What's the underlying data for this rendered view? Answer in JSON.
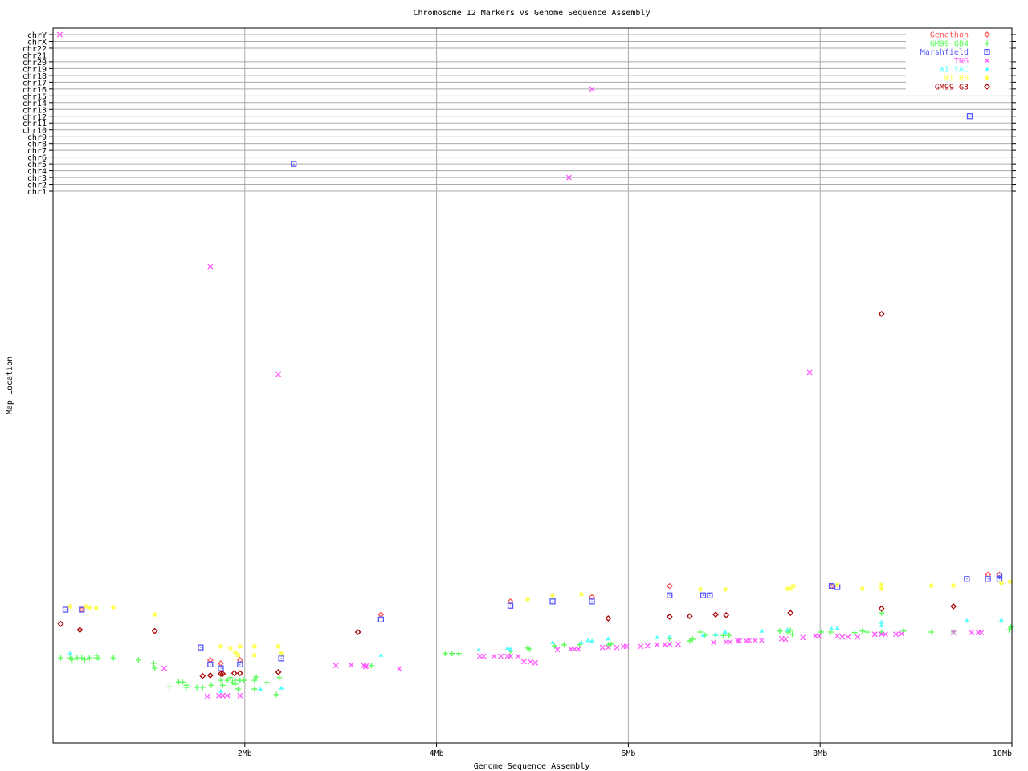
{
  "chart_data": {
    "type": "scatter",
    "title": "Chromosome 12 Markers vs Genome Sequence Assembly",
    "xlabel": "Genome Sequence Assembly",
    "ylabel": "Map Location",
    "xlim": [
      0,
      10
    ],
    "x_unit": "Mb",
    "x_ticks": [
      {
        "value": 2,
        "label": "2Mb"
      },
      {
        "value": 4,
        "label": "4Mb"
      },
      {
        "value": 6,
        "label": "6Mb"
      },
      {
        "value": 8,
        "label": "8Mb"
      },
      {
        "value": 10,
        "label": "10Mb"
      }
    ],
    "chromosome_labels": [
      "chrY",
      "chrX",
      "chr22",
      "chr21",
      "chr20",
      "chr19",
      "chr18",
      "chr17",
      "chr16",
      "chr15",
      "chr14",
      "chr13",
      "chr12",
      "chr11",
      "chr10",
      "chr9",
      "chr8",
      "chr7",
      "chr6",
      "chr5",
      "chr4",
      "chr3",
      "chr2",
      "chr1"
    ],
    "chr12_map_range": [
      0,
      100
    ],
    "grid": true,
    "legend_placement": "top-right",
    "series": [
      {
        "name": "Genethon",
        "marker": "diamond",
        "color": "#ff5555",
        "points": [
          [
            0.3,
            24.3
          ],
          [
            1.64,
            15.1
          ],
          [
            1.75,
            14.5
          ],
          [
            1.95,
            15.1
          ],
          [
            3.42,
            23.4
          ],
          [
            4.77,
            25.8
          ],
          [
            5.62,
            26.6
          ],
          [
            6.43,
            28.6
          ],
          [
            8.12,
            28.6
          ],
          [
            9.75,
            30.7
          ],
          [
            9.87,
            30.7
          ]
        ]
      },
      {
        "name": "GM99 GB4",
        "marker": "plus",
        "color": "#55ff55",
        "points": [
          [
            0.08,
            15.5
          ],
          [
            0.18,
            15.5
          ],
          [
            0.2,
            15.2
          ],
          [
            0.25,
            15.5
          ],
          [
            0.3,
            15.5
          ],
          [
            0.33,
            15.2
          ],
          [
            0.38,
            15.5
          ],
          [
            0.45,
            15.5
          ],
          [
            0.45,
            16.0
          ],
          [
            0.47,
            15.5
          ],
          [
            0.63,
            15.5
          ],
          [
            0.89,
            15.1
          ],
          [
            1.05,
            14.5
          ],
          [
            1.06,
            13.6
          ],
          [
            1.21,
            10.2
          ],
          [
            1.31,
            11.1
          ],
          [
            1.35,
            11.1
          ],
          [
            1.39,
            10.5
          ],
          [
            1.39,
            10.1
          ],
          [
            1.5,
            10.1
          ],
          [
            1.56,
            10.1
          ],
          [
            1.65,
            10.5
          ],
          [
            1.75,
            11.4
          ],
          [
            1.77,
            10.5
          ],
          [
            1.82,
            11.4
          ],
          [
            1.85,
            11.9
          ],
          [
            1.87,
            11.0
          ],
          [
            1.9,
            10.7
          ],
          [
            1.9,
            11.4
          ],
          [
            1.93,
            9.8
          ],
          [
            1.95,
            11.4
          ],
          [
            1.99,
            11.4
          ],
          [
            2.1,
            11.4
          ],
          [
            2.1,
            9.8
          ],
          [
            2.12,
            12.0
          ],
          [
            2.23,
            11.0
          ],
          [
            2.33,
            8.8
          ],
          [
            2.36,
            11.9
          ],
          [
            3.32,
            14.1
          ],
          [
            4.09,
            16.3
          ],
          [
            4.16,
            16.3
          ],
          [
            4.23,
            16.3
          ],
          [
            4.77,
            16.7
          ],
          [
            4.95,
            17.3
          ],
          [
            4.97,
            17.1
          ],
          [
            5.23,
            17.7
          ],
          [
            5.33,
            17.9
          ],
          [
            5.49,
            17.9
          ],
          [
            5.79,
            17.9
          ],
          [
            5.82,
            18.0
          ],
          [
            6.43,
            19.0
          ],
          [
            6.64,
            18.6
          ],
          [
            6.67,
            18.9
          ],
          [
            6.75,
            20.2
          ],
          [
            6.8,
            19.6
          ],
          [
            6.91,
            19.6
          ],
          [
            6.99,
            19.6
          ],
          [
            7.05,
            19.6
          ],
          [
            7.58,
            20.4
          ],
          [
            7.66,
            20.2
          ],
          [
            7.69,
            20.5
          ],
          [
            7.71,
            19.8
          ],
          [
            8.01,
            20.2
          ],
          [
            8.11,
            20.2
          ],
          [
            8.36,
            20.1
          ],
          [
            8.44,
            20.4
          ],
          [
            8.49,
            20.2
          ],
          [
            8.64,
            23.7
          ],
          [
            8.64,
            20.2
          ],
          [
            8.87,
            20.4
          ],
          [
            9.16,
            20.2
          ],
          [
            9.39,
            20.2
          ],
          [
            9.97,
            20.6
          ],
          [
            9.99,
            21.1
          ]
        ]
      },
      {
        "name": "Marshfield",
        "marker": "square",
        "color": "#5555ff",
        "points": [
          [
            0.13,
            24.3
          ],
          [
            0.3,
            24.3
          ],
          [
            1.54,
            17.4
          ],
          [
            1.64,
            14.3
          ],
          [
            1.75,
            13.6
          ],
          [
            1.95,
            14.3
          ],
          [
            2.38,
            15.4
          ],
          [
            3.42,
            22.5
          ],
          [
            4.77,
            25.0
          ],
          [
            5.21,
            25.8
          ],
          [
            5.62,
            25.8
          ],
          [
            6.43,
            26.9
          ],
          [
            6.78,
            26.9
          ],
          [
            6.85,
            26.9
          ],
          [
            8.12,
            28.6
          ],
          [
            8.18,
            28.4
          ],
          [
            9.53,
            29.9
          ],
          [
            9.75,
            29.9
          ],
          [
            9.87,
            29.9
          ],
          [
            9.87,
            30.5
          ],
          [
            2.51,
            "chr5"
          ],
          [
            9.56,
            "chr12"
          ]
        ]
      },
      {
        "name": "TNG",
        "marker": "x",
        "color": "#ff55ff",
        "points": [
          [
            1.16,
            13.6
          ],
          [
            1.61,
            8.5
          ],
          [
            1.73,
            8.6
          ],
          [
            1.77,
            8.6
          ],
          [
            1.82,
            8.6
          ],
          [
            1.95,
            8.6
          ],
          [
            2.95,
            14.1
          ],
          [
            3.11,
            14.2
          ],
          [
            3.24,
            14.1
          ],
          [
            3.26,
            13.9
          ],
          [
            3.27,
            14.1
          ],
          [
            3.61,
            13.5
          ],
          [
            4.45,
            15.8
          ],
          [
            4.49,
            15.8
          ],
          [
            4.6,
            15.8
          ],
          [
            4.67,
            15.8
          ],
          [
            4.74,
            15.8
          ],
          [
            4.77,
            15.8
          ],
          [
            4.85,
            15.8
          ],
          [
            4.91,
            14.8
          ],
          [
            4.98,
            14.8
          ],
          [
            5.03,
            14.6
          ],
          [
            5.26,
            17.0
          ],
          [
            5.4,
            17.1
          ],
          [
            5.44,
            17.1
          ],
          [
            5.48,
            17.1
          ],
          [
            5.73,
            17.4
          ],
          [
            5.79,
            17.4
          ],
          [
            5.88,
            17.4
          ],
          [
            5.95,
            17.6
          ],
          [
            5.98,
            17.6
          ],
          [
            6.13,
            17.6
          ],
          [
            6.2,
            17.7
          ],
          [
            6.3,
            17.9
          ],
          [
            6.38,
            17.9
          ],
          [
            6.43,
            18.0
          ],
          [
            6.52,
            18.0
          ],
          [
            6.89,
            18.3
          ],
          [
            7.02,
            18.4
          ],
          [
            7.06,
            18.4
          ],
          [
            7.14,
            18.6
          ],
          [
            7.16,
            18.6
          ],
          [
            7.23,
            18.6
          ],
          [
            7.26,
            18.7
          ],
          [
            7.32,
            18.7
          ],
          [
            7.39,
            18.7
          ],
          [
            7.6,
            19.0
          ],
          [
            7.64,
            18.9
          ],
          [
            7.82,
            19.2
          ],
          [
            7.95,
            19.5
          ],
          [
            7.99,
            19.5
          ],
          [
            8.18,
            19.5
          ],
          [
            8.23,
            19.3
          ],
          [
            8.29,
            19.3
          ],
          [
            8.39,
            19.3
          ],
          [
            8.57,
            19.8
          ],
          [
            8.64,
            19.8
          ],
          [
            8.68,
            19.8
          ],
          [
            8.79,
            19.8
          ],
          [
            8.85,
            19.9
          ],
          [
            9.39,
            20.1
          ],
          [
            9.58,
            20.1
          ],
          [
            9.65,
            20.1
          ],
          [
            9.68,
            20.1
          ],
          [
            1.64,
            86.8
          ],
          [
            2.35,
            67.2
          ],
          [
            7.89,
            67.5
          ],
          [
            0.07,
            "chrY"
          ],
          [
            5.62,
            "chr16"
          ],
          [
            5.38,
            "chr3"
          ]
        ]
      },
      {
        "name": "WI YAC",
        "marker": "triangle",
        "color": "#55ffff",
        "points": [
          [
            0.18,
            16.4
          ],
          [
            1.75,
            9.4
          ],
          [
            2.16,
            9.8
          ],
          [
            2.38,
            10.0
          ],
          [
            3.42,
            16.0
          ],
          [
            4.44,
            17.0
          ],
          [
            4.74,
            17.3
          ],
          [
            4.77,
            17.1
          ],
          [
            5.21,
            18.3
          ],
          [
            5.51,
            18.3
          ],
          [
            5.58,
            18.7
          ],
          [
            5.62,
            18.6
          ],
          [
            5.79,
            19.0
          ],
          [
            6.3,
            19.2
          ],
          [
            6.43,
            19.3
          ],
          [
            6.78,
            19.6
          ],
          [
            6.91,
            19.8
          ],
          [
            7.01,
            20.2
          ],
          [
            7.39,
            20.4
          ],
          [
            7.66,
            20.6
          ],
          [
            8.12,
            20.8
          ],
          [
            8.18,
            20.9
          ],
          [
            8.64,
            22.0
          ],
          [
            8.64,
            21.4
          ],
          [
            9.53,
            22.3
          ],
          [
            9.89,
            22.4
          ]
        ]
      },
      {
        "name": "WI RH",
        "marker": "asterisk",
        "color": "#ffff55",
        "points": [
          [
            0.18,
            24.9
          ],
          [
            0.34,
            24.9
          ],
          [
            0.38,
            24.7
          ],
          [
            0.45,
            24.6
          ],
          [
            0.63,
            24.7
          ],
          [
            1.06,
            23.4
          ],
          [
            1.75,
            17.6
          ],
          [
            1.85,
            17.3
          ],
          [
            1.9,
            16.5
          ],
          [
            1.93,
            16.0
          ],
          [
            1.95,
            17.6
          ],
          [
            2.1,
            17.6
          ],
          [
            2.1,
            16.0
          ],
          [
            2.35,
            17.6
          ],
          [
            2.38,
            16.3
          ],
          [
            4.95,
            26.2
          ],
          [
            5.21,
            26.9
          ],
          [
            5.51,
            27.1
          ],
          [
            6.75,
            28.0
          ],
          [
            7.01,
            28.0
          ],
          [
            7.66,
            28.1
          ],
          [
            7.69,
            28.1
          ],
          [
            7.72,
            28.6
          ],
          [
            8.18,
            28.8
          ],
          [
            8.44,
            28.1
          ],
          [
            8.64,
            28.8
          ],
          [
            8.64,
            28.1
          ],
          [
            9.16,
            28.7
          ],
          [
            9.39,
            28.7
          ],
          [
            9.89,
            29.1
          ],
          [
            9.98,
            29.4
          ]
        ]
      },
      {
        "name": "GM99 G3",
        "marker": "diamond",
        "color": "#aa0000",
        "points": [
          [
            0.08,
            21.7
          ],
          [
            0.28,
            20.6
          ],
          [
            1.06,
            20.4
          ],
          [
            1.56,
            12.2
          ],
          [
            1.64,
            12.3
          ],
          [
            1.75,
            12.6
          ],
          [
            1.77,
            12.6
          ],
          [
            1.89,
            12.7
          ],
          [
            1.95,
            12.7
          ],
          [
            2.35,
            12.9
          ],
          [
            3.18,
            20.2
          ],
          [
            5.79,
            22.7
          ],
          [
            6.43,
            23.0
          ],
          [
            6.64,
            23.1
          ],
          [
            6.91,
            23.4
          ],
          [
            7.02,
            23.3
          ],
          [
            7.69,
            23.7
          ],
          [
            8.64,
            24.5
          ],
          [
            9.39,
            24.9
          ],
          [
            8.64,
            78.2
          ]
        ]
      }
    ]
  }
}
